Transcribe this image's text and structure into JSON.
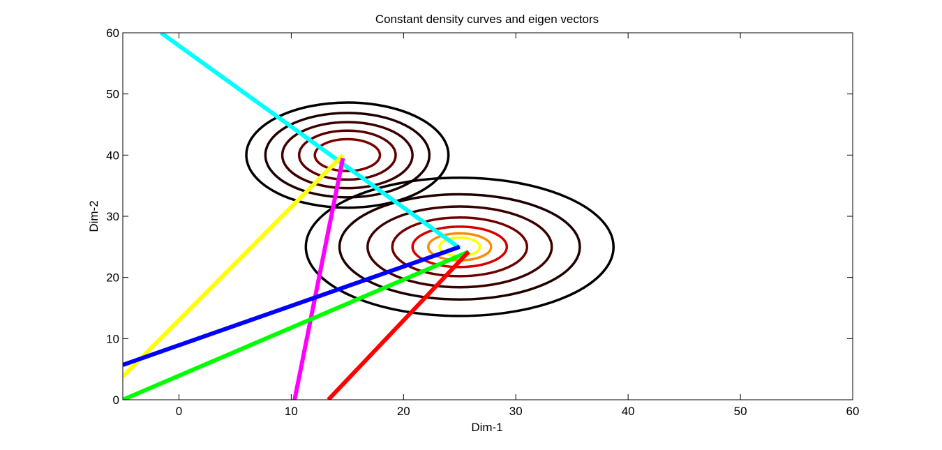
{
  "chart_data": {
    "type": "contour",
    "title": "Constant density curves and eigen vectors",
    "xlabel": "Dim-1",
    "ylabel": "Dim-2",
    "xlim": [
      -5,
      60
    ],
    "ylim": [
      0,
      60
    ],
    "xticks": [
      0,
      10,
      20,
      30,
      40,
      50,
      60
    ],
    "yticks": [
      0,
      10,
      20,
      30,
      40,
      50,
      60
    ],
    "grid": false,
    "contour_sets": [
      {
        "center": [
          15,
          40
        ],
        "levels": [
          {
            "rx": 9.0,
            "ry": 8.6,
            "color": "#000000"
          },
          {
            "rx": 7.3,
            "ry": 6.9,
            "color": "#1e0000"
          },
          {
            "rx": 5.8,
            "ry": 5.4,
            "color": "#3c0000"
          },
          {
            "rx": 4.3,
            "ry": 4.0,
            "color": "#5a0000"
          },
          {
            "rx": 2.9,
            "ry": 2.6,
            "color": "#7a0000"
          }
        ]
      },
      {
        "center": [
          25,
          25
        ],
        "levels": [
          {
            "rx": 13.7,
            "ry": 11.3,
            "color": "#000000"
          },
          {
            "rx": 10.7,
            "ry": 8.6,
            "color": "#1e0000"
          },
          {
            "rx": 8.2,
            "ry": 6.6,
            "color": "#3c0000"
          },
          {
            "rx": 6.0,
            "ry": 4.8,
            "color": "#6e0000"
          },
          {
            "rx": 4.2,
            "ry": 3.3,
            "color": "#d40000"
          },
          {
            "rx": 2.8,
            "ry": 2.2,
            "color": "#ff8c00"
          },
          {
            "rx": 1.8,
            "ry": 1.5,
            "color": "#ffff00"
          }
        ]
      }
    ],
    "series": [
      {
        "color": "#00ffff",
        "x": [
          -1.6,
          25.0
        ],
        "y": [
          60.0,
          24.8
        ]
      },
      {
        "color": "#ffff00",
        "x": [
          -5.0,
          14.6
        ],
        "y": [
          3.8,
          40.0
        ]
      },
      {
        "color": "#ff00ff",
        "x": [
          10.3,
          14.6
        ],
        "y": [
          0.0,
          39.5
        ]
      },
      {
        "color": "#0000ff",
        "x": [
          -5.0,
          25.0
        ],
        "y": [
          5.7,
          25.0
        ]
      },
      {
        "color": "#00ff00",
        "x": [
          -5.0,
          25.8
        ],
        "y": [
          0.0,
          24.2
        ]
      },
      {
        "color": "#ff0000",
        "x": [
          13.3,
          25.8
        ],
        "y": [
          0.0,
          24.2
        ]
      }
    ]
  }
}
